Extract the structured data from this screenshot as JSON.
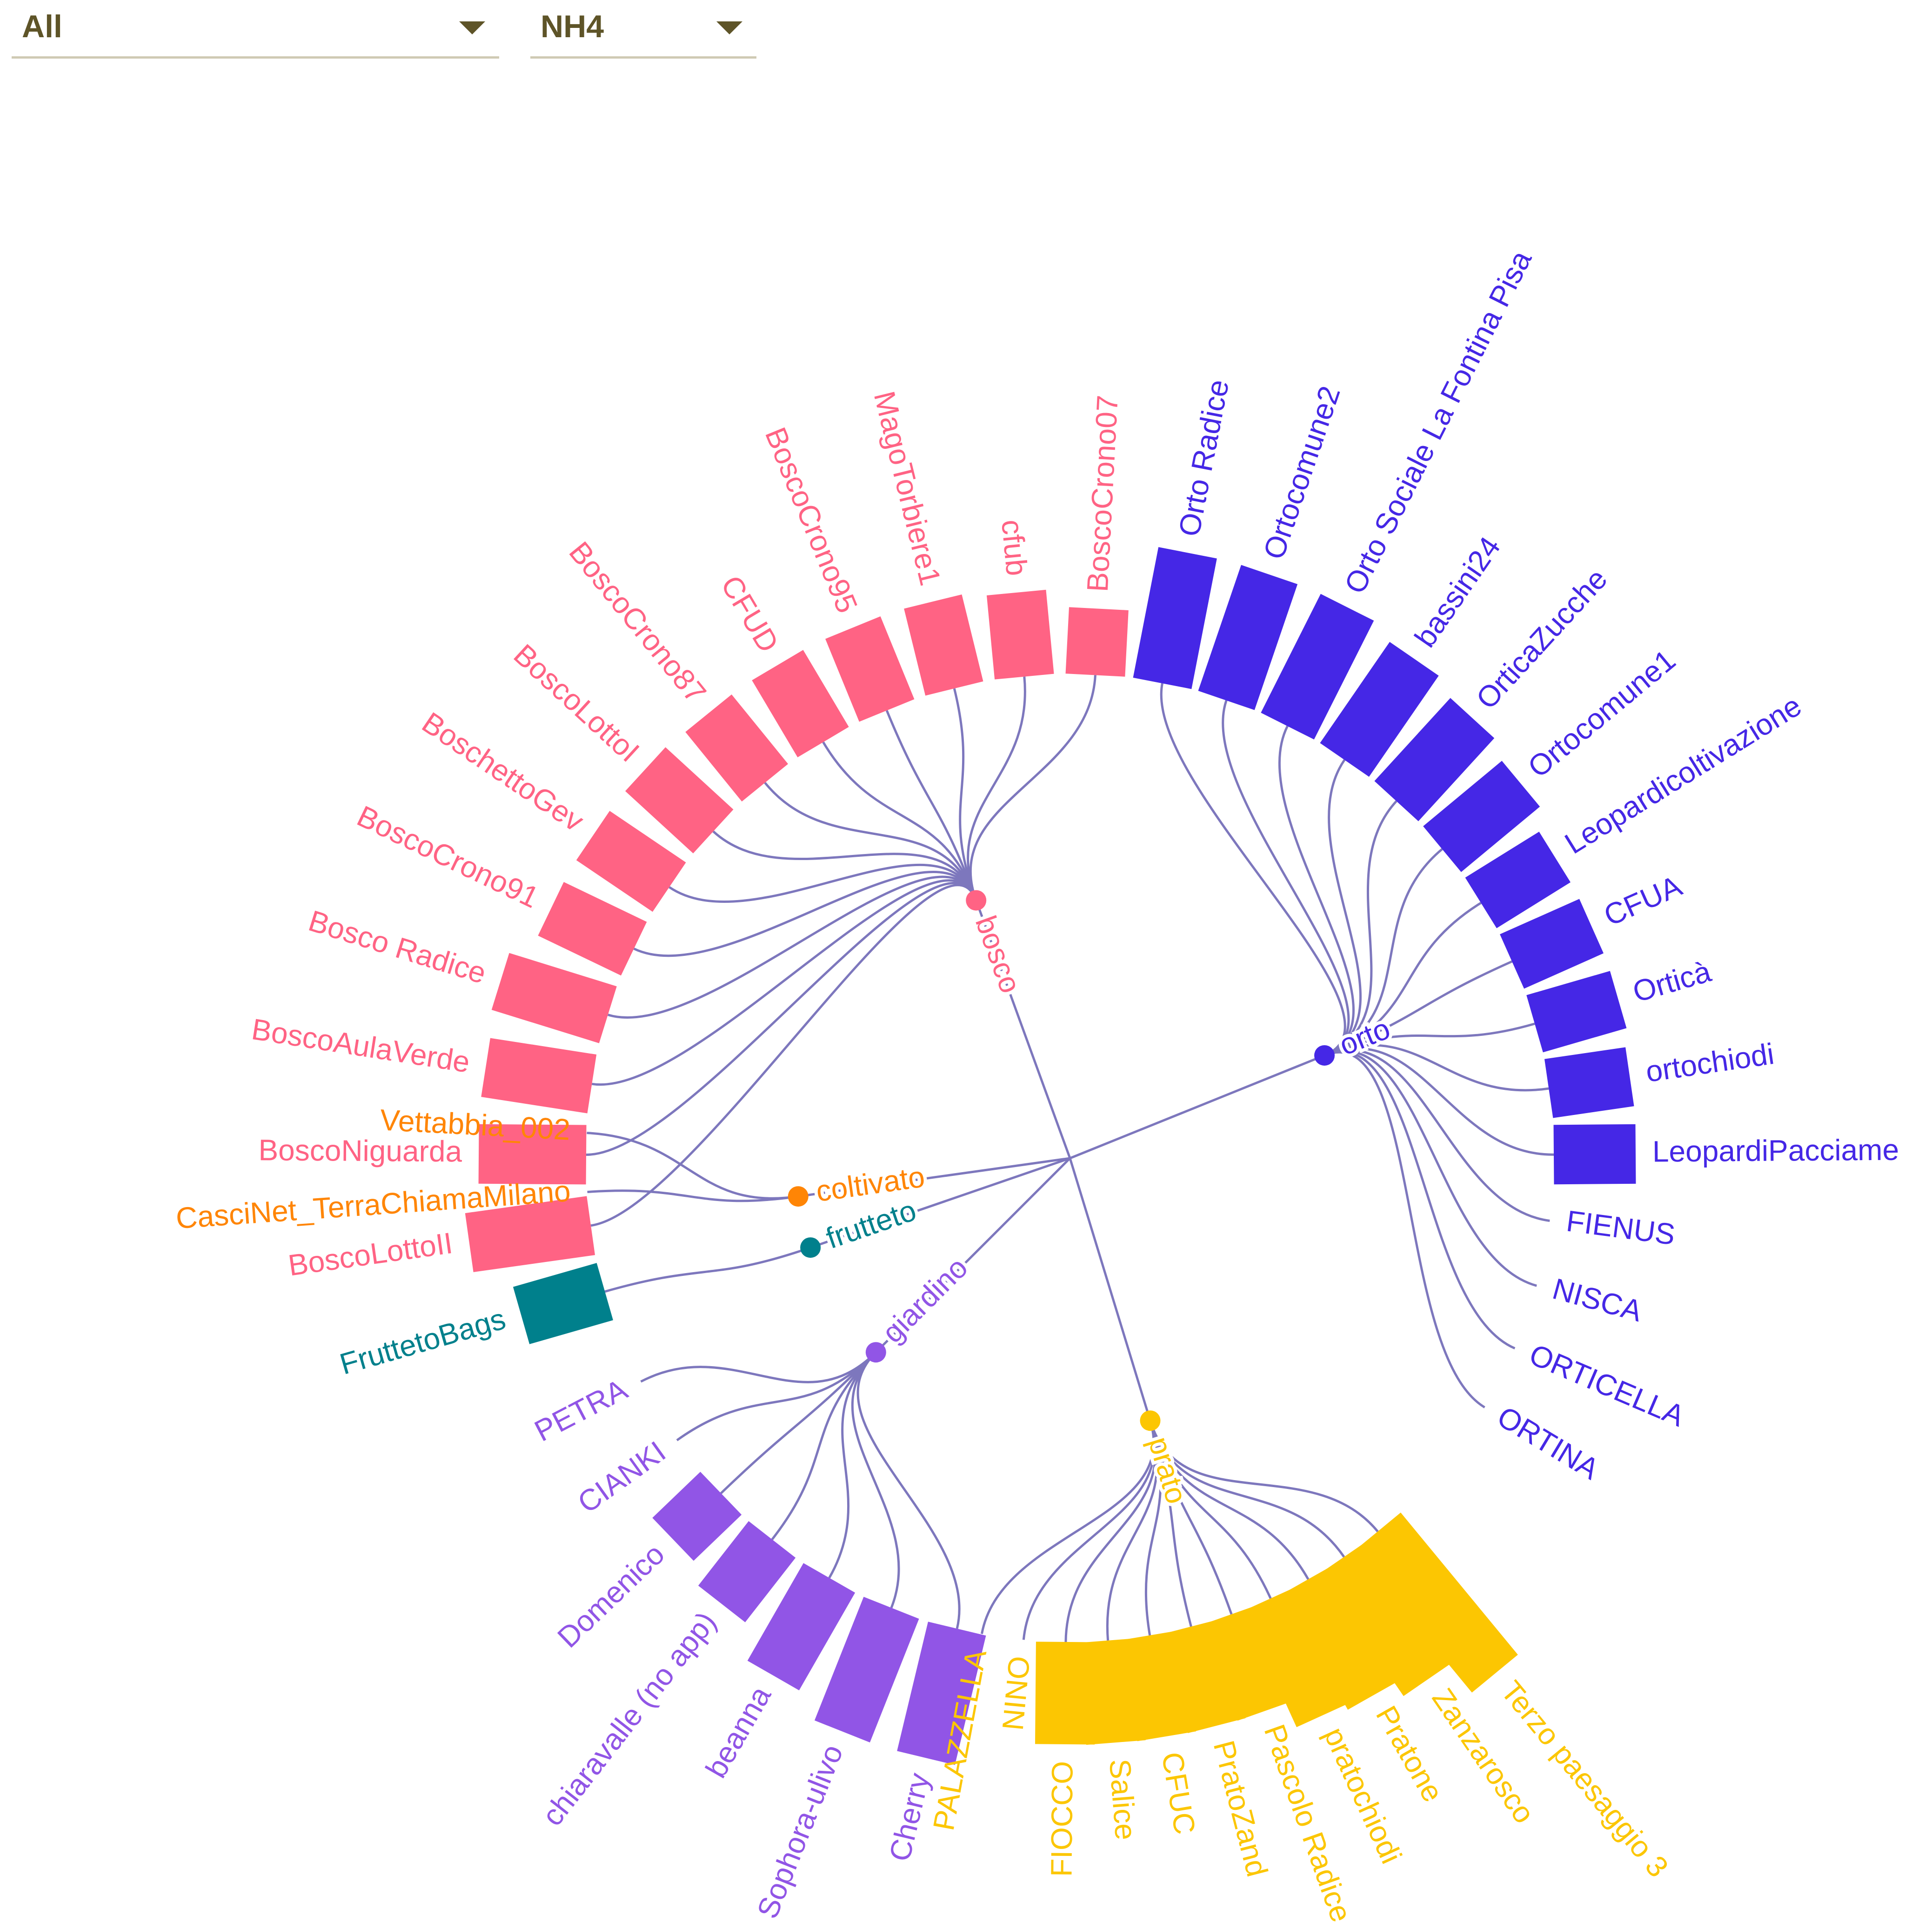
{
  "controls": {
    "group_select": {
      "value": "All"
    },
    "parameter_select": {
      "value": "NH4"
    }
  },
  "chart_data": {
    "type": "radial-dendrogram-bar",
    "parameter": "NH4",
    "groups": [
      {
        "name": "bosco",
        "color": "#ff6384",
        "leaves": [
          {
            "name": "BoscoLottoII",
            "value": 48
          },
          {
            "name": "BoscoNiguarda",
            "value": 42
          },
          {
            "name": "BoscoAulaVerde",
            "value": 42
          },
          {
            "name": "Bosco Radice",
            "value": 44
          },
          {
            "name": "BoscoCrono91",
            "value": 36
          },
          {
            "name": "BoschettoGev",
            "value": 36
          },
          {
            "name": "BoscoLottoI",
            "value": 36
          },
          {
            "name": "BoscoCrono87",
            "value": 35
          },
          {
            "name": "CFUD",
            "value": 35
          },
          {
            "name": "BoscoCrono95",
            "value": 35
          },
          {
            "name": "MagoTorbiere1",
            "value": 35
          },
          {
            "name": "cfub",
            "value": 33
          },
          {
            "name": "BoscoCrono07",
            "value": 26
          }
        ]
      },
      {
        "name": "orto",
        "color": "#4527e6",
        "leaves": [
          {
            "name": "Orto Radice",
            "value": 52
          },
          {
            "name": "Ortocomune2",
            "value": 52
          },
          {
            "name": "Orto Sociale La Fontina Pisa",
            "value": 52
          },
          {
            "name": "bassini24",
            "value": 48
          },
          {
            "name": "OrticaZucche",
            "value": 44
          },
          {
            "name": "Ortocomune1",
            "value": 40
          },
          {
            "name": "Leopardicoltivazione",
            "value": 34
          },
          {
            "name": "CFUA",
            "value": 34
          },
          {
            "name": "Orticà",
            "value": 34
          },
          {
            "name": "ortochiodi",
            "value": 32
          },
          {
            "name": "LeopardiPacciame",
            "value": 32
          },
          {
            "name": "FIENUS",
            "value": 0
          },
          {
            "name": "NISCA",
            "value": 0
          },
          {
            "name": "ORTICELLA",
            "value": 0
          },
          {
            "name": "ORTINA",
            "value": 0
          }
        ]
      },
      {
        "name": "prato",
        "color": "#fcc602",
        "leaves": [
          {
            "name": "Terzo paesaggio 3",
            "value": 72
          },
          {
            "name": "Zanzarosco",
            "value": 58
          },
          {
            "name": "Pratone",
            "value": 52
          },
          {
            "name": "pratochiodi",
            "value": 50
          },
          {
            "name": "Pascolo Radice",
            "value": 40
          },
          {
            "name": "PratoZand",
            "value": 40
          },
          {
            "name": "CFUC",
            "value": 40
          },
          {
            "name": "Salice",
            "value": 40
          },
          {
            "name": "FIOCCO",
            "value": 40
          },
          {
            "name": "NINO",
            "value": 0
          },
          {
            "name": "PALAZZELLA",
            "value": 0
          }
        ]
      },
      {
        "name": "giardino",
        "color": "#9155e6",
        "leaves": [
          {
            "name": "Cherry",
            "value": 52
          },
          {
            "name": "Sophora-ulivo",
            "value": 52
          },
          {
            "name": "beanna",
            "value": 44
          },
          {
            "name": "chiaravalle (no app)",
            "value": 32
          },
          {
            "name": "Domenico",
            "value": 26
          },
          {
            "name": "CIANKI",
            "value": 0
          },
          {
            "name": "PETRA",
            "value": 0
          }
        ]
      },
      {
        "name": "frutteto",
        "color": "#00808c",
        "leaves": [
          {
            "name": "FruttetoBags",
            "value": 34
          }
        ]
      },
      {
        "name": "coltivato",
        "color": "#ff8505",
        "leaves": [
          {
            "name": "CasciNet_TerraChiamaMilano",
            "value": 0
          },
          {
            "name": "Vettabbia_002",
            "value": 0
          }
        ]
      }
    ],
    "link_color": "#7d77bd"
  }
}
